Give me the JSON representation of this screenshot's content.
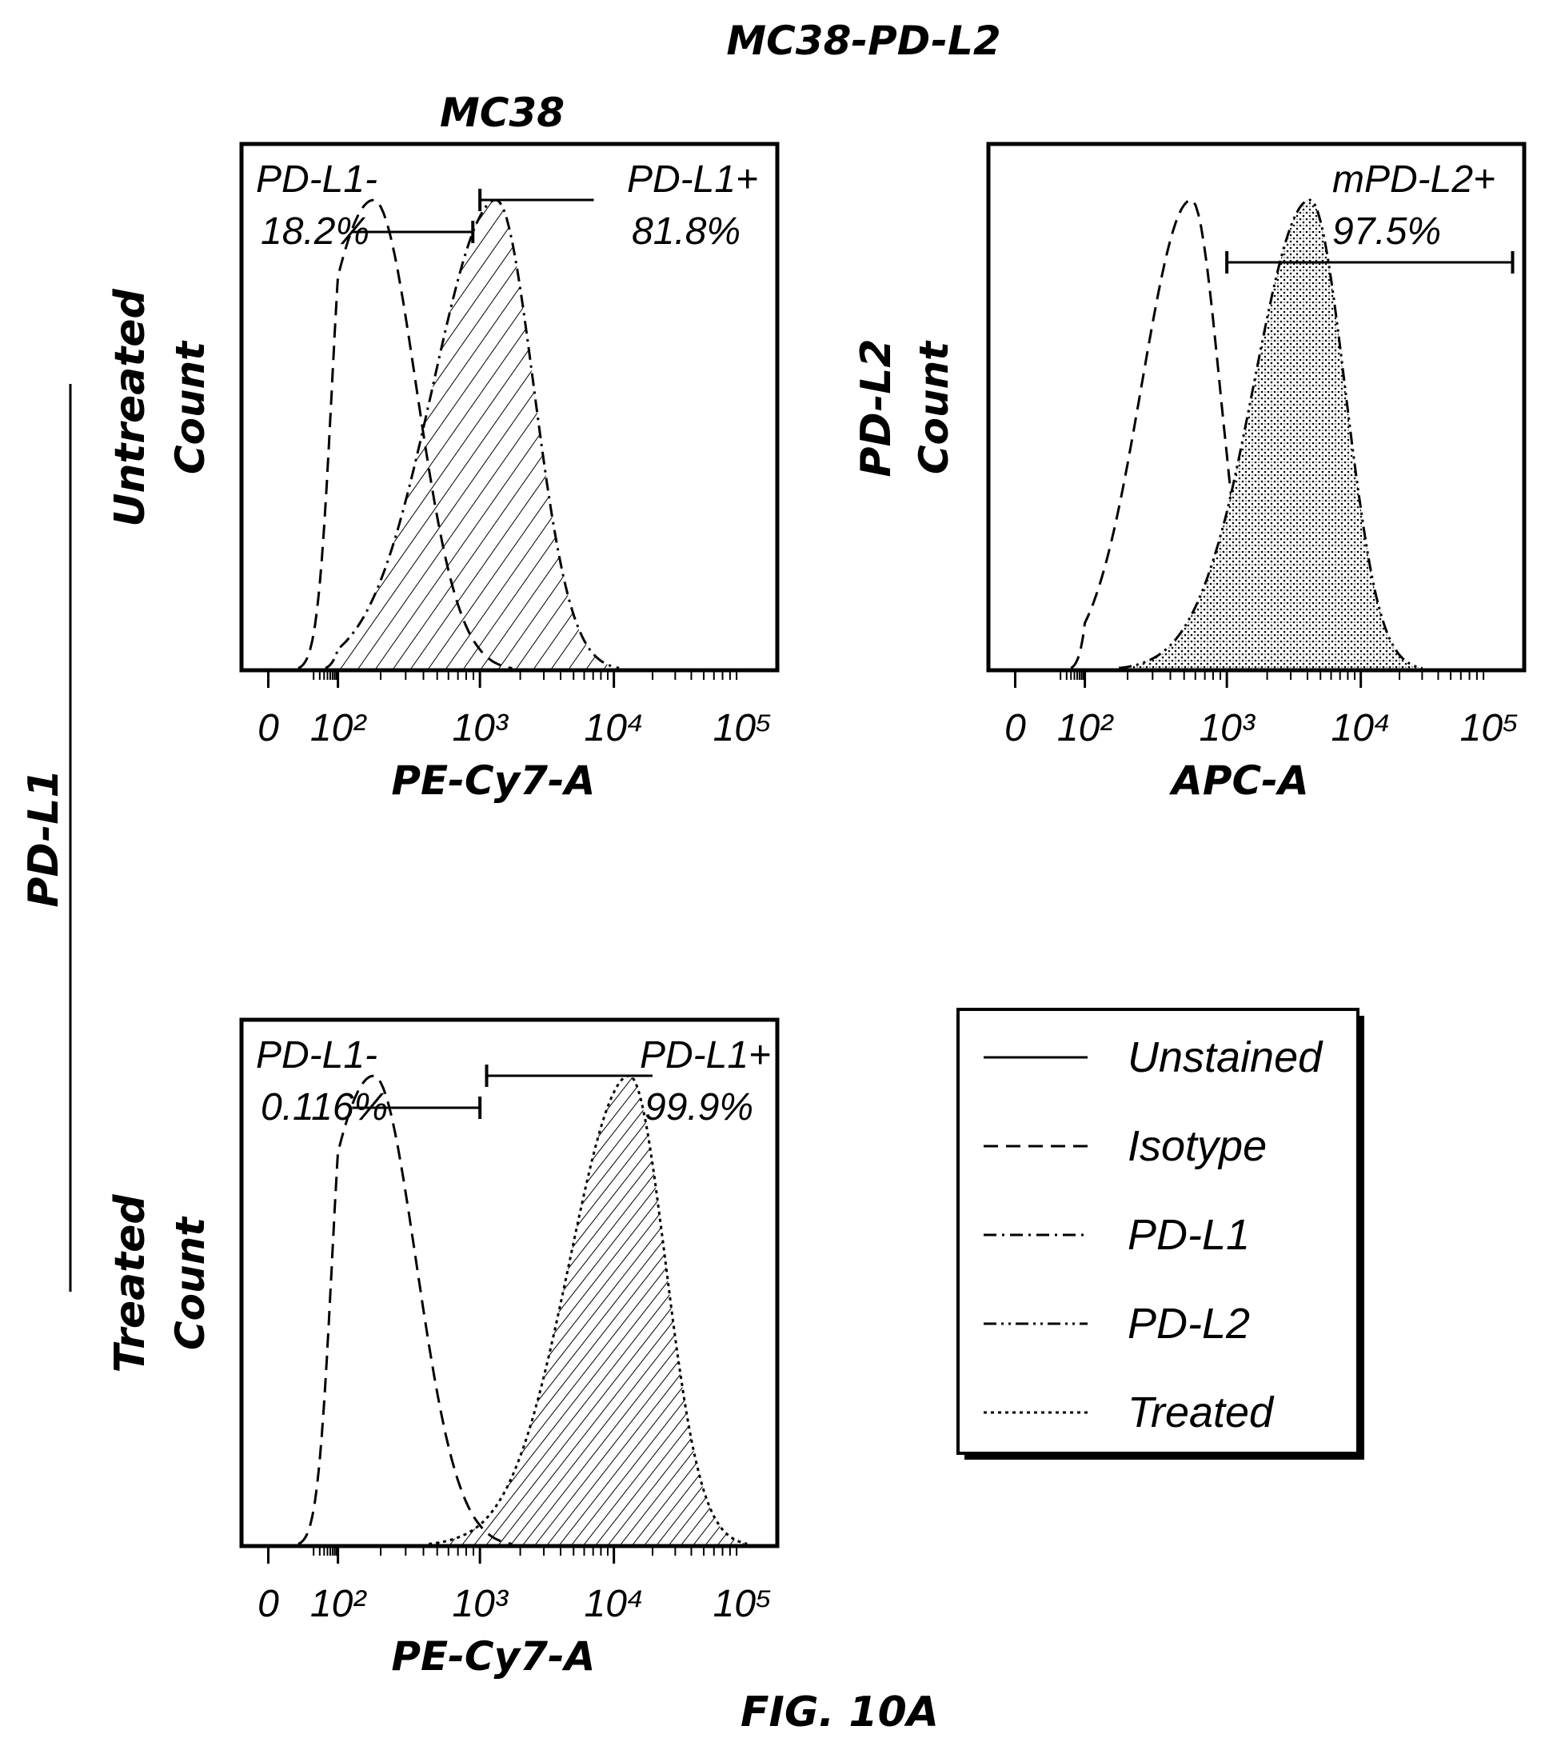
{
  "figure_label": "FIG. 10A",
  "top_title": "MC38-PD-L2",
  "sub_title": "MC38",
  "side_label": "PD-L1",
  "colors": {
    "ink": "#000000",
    "background": "#ffffff"
  },
  "chart_data": [
    {
      "type": "histogram",
      "row_label": "Untreated",
      "ylabel": "Count",
      "xlabel": "PE-Cy7-A",
      "x_scale": "biexponential (log)",
      "x_ticks": [
        "0",
        "10²",
        "10³",
        "10⁴",
        "10⁵"
      ],
      "x_tick_exponents": [
        0,
        2,
        3,
        4,
        5
      ],
      "series": [
        {
          "name": "Isotype",
          "style": "dashed",
          "fill": "none",
          "peak_log10": 2.25,
          "left_sd": 0.42,
          "right_sd": 0.3
        },
        {
          "name": "PD-L1",
          "style": "dash-dot",
          "fill": "hatch",
          "peak_log10": 3.12,
          "left_sd": 0.45,
          "right_sd": 0.28
        }
      ],
      "gates": [
        {
          "label_line1": "PD-L1-",
          "label_line2": "18.2%",
          "range_log10": [
            2.1,
            2.95
          ]
        },
        {
          "label_line1": "PD-L1+",
          "label_line2": "81.8%",
          "range_log10": [
            3.0,
            3.85
          ]
        }
      ]
    },
    {
      "type": "histogram",
      "row_label": "PD-L2",
      "ylabel": "Count",
      "xlabel": "APC-A",
      "x_scale": "biexponential (log)",
      "x_ticks": [
        "0",
        "10²",
        "10³",
        "10⁴",
        "10⁵"
      ],
      "x_tick_exponents": [
        0,
        2,
        3,
        4,
        5
      ],
      "series": [
        {
          "name": "Isotype",
          "style": "dashed",
          "fill": "none",
          "peak_log10": 2.75,
          "left_sd": 0.35,
          "right_sd": 0.2
        },
        {
          "name": "PD-L2",
          "style": "dash-dot-dot",
          "fill": "stipple",
          "peak_log10": 3.62,
          "left_sd": 0.42,
          "right_sd": 0.26
        }
      ],
      "gates": [
        {
          "label_line1": "mPD-L2+",
          "label_line2": "97.5%",
          "range_log10": [
            3.0,
            5.2
          ]
        }
      ]
    },
    {
      "type": "histogram",
      "row_label": "Treated",
      "ylabel": "Count",
      "xlabel": "PE-Cy7-A",
      "x_scale": "biexponential (log)",
      "x_ticks": [
        "0",
        "10²",
        "10³",
        "10⁴",
        "10⁵"
      ],
      "x_tick_exponents": [
        0,
        2,
        3,
        4,
        5
      ],
      "series": [
        {
          "name": "Isotype",
          "style": "dashed",
          "fill": "none",
          "peak_log10": 2.25,
          "left_sd": 0.42,
          "right_sd": 0.3
        },
        {
          "name": "Treated",
          "style": "dotted",
          "fill": "hatch-dense",
          "peak_log10": 4.12,
          "left_sd": 0.45,
          "right_sd": 0.28
        }
      ],
      "gates": [
        {
          "label_line1": "PD-L1-",
          "label_line2": "0.116%",
          "range_log10": [
            2.1,
            3.0
          ]
        },
        {
          "label_line1": "PD-L1+",
          "label_line2": "99.9%",
          "range_log10": [
            3.05,
            4.3
          ]
        }
      ]
    }
  ],
  "legend": [
    {
      "label": "Unstained",
      "style": "solid"
    },
    {
      "label": "Isotype",
      "style": "dashed"
    },
    {
      "label": "PD-L1",
      "style": "dash-dot"
    },
    {
      "label": "PD-L2",
      "style": "dash-dot-dot"
    },
    {
      "label": "Treated",
      "style": "dotted"
    }
  ]
}
